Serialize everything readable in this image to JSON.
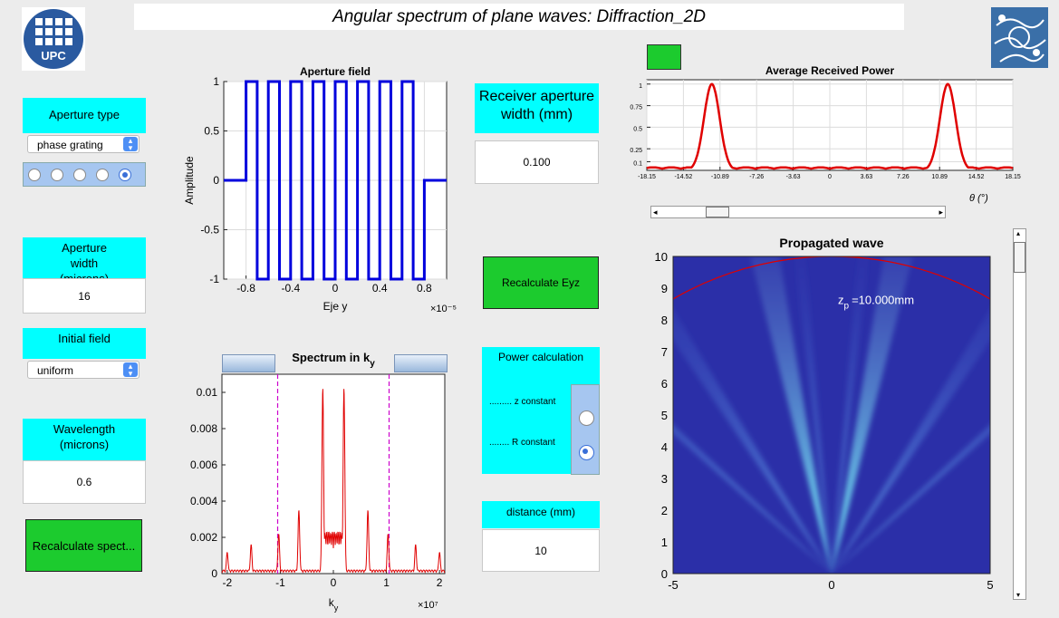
{
  "title": "Angular spectrum of plane waves: Diffraction_2D",
  "logo_left": "UPC",
  "aperture_type": {
    "label": "Aperture type",
    "value": "phase grating"
  },
  "aperture_width": {
    "label": "Aperture width (microns)",
    "value": "16"
  },
  "initial_field": {
    "label": "Initial field",
    "value": "uniform"
  },
  "wavelength": {
    "label": "Wavelength (microns)",
    "value": "0.6"
  },
  "recalc_spectrum": "Recalculate spect...",
  "receiver": {
    "label": "Receiver aperture width (mm)",
    "value": "0.100"
  },
  "recalc_eyz": "Recalculate Eyz",
  "power_calc": {
    "label": "Power calculation",
    "z_const": "......... z constant",
    "r_const": "........ R constant",
    "selected": "R constant"
  },
  "distance": {
    "label": "distance (mm)",
    "value": "10"
  },
  "status_color": "#1ccb2e",
  "chart_data": [
    {
      "type": "line",
      "title": "Aperture field",
      "xlabel": "Eje y",
      "ylabel": "Amplitude",
      "x_multiplier": "×10⁻⁵",
      "xlim": [
        -1,
        1
      ],
      "ylim": [
        -1,
        1
      ],
      "xticks": [
        -0.8,
        -0.4,
        0,
        0.4,
        0.8
      ],
      "yticks": [
        -1,
        -0.5,
        0,
        0.5,
        1
      ],
      "series": [
        {
          "color": "#0000dd",
          "x": [
            -1,
            -0.8,
            -0.8,
            -0.7,
            -0.7,
            -0.6,
            -0.6,
            -0.5,
            -0.5,
            -0.4,
            -0.4,
            -0.3,
            -0.3,
            -0.2,
            -0.2,
            -0.1,
            -0.1,
            0,
            0,
            0.1,
            0.1,
            0.2,
            0.2,
            0.3,
            0.3,
            0.4,
            0.4,
            0.5,
            0.5,
            0.6,
            0.6,
            0.7,
            0.7,
            0.8,
            0.8,
            1
          ],
          "y": [
            0,
            0,
            1,
            1,
            -1,
            -1,
            1,
            1,
            -1,
            -1,
            1,
            1,
            -1,
            -1,
            1,
            1,
            -1,
            -1,
            1,
            1,
            -1,
            -1,
            1,
            1,
            -1,
            -1,
            1,
            1,
            -1,
            -1,
            1,
            1,
            -1,
            -1,
            0,
            0
          ]
        }
      ]
    },
    {
      "type": "line",
      "title": "Spectrum in k",
      "title_sub": "y",
      "xlabel": "k",
      "xlabel_sub": "y",
      "x_multiplier": "×10⁷",
      "xlim": [
        -2.1,
        2.1
      ],
      "ylim": [
        0,
        0.011
      ],
      "xticks": [
        -2,
        -1,
        0,
        1,
        2
      ],
      "yticks": [
        0,
        0.002,
        0.004,
        0.006,
        0.008,
        0.01
      ],
      "ytick_labels": [
        "0",
        "0.002",
        "0.004",
        "0.006",
        "0.008",
        "0.01"
      ],
      "vlines": [
        -1.05,
        1.05
      ],
      "vline_color": "#cc00cc",
      "series": [
        {
          "color": "#e00000",
          "peaks": [
            [
              -2.0,
              0.0011
            ],
            [
              -1.55,
              0.0015
            ],
            [
              -1.03,
              0.0021
            ],
            [
              -0.65,
              0.0034
            ],
            [
              -0.2,
              0.0102
            ],
            [
              0.2,
              0.0102
            ],
            [
              0.65,
              0.0034
            ],
            [
              1.03,
              0.0021
            ],
            [
              1.55,
              0.0015
            ],
            [
              2.0,
              0.0011
            ]
          ]
        }
      ]
    },
    {
      "type": "line",
      "title": "Average Received Power",
      "xlabel": "θ (°)",
      "xlim": [
        -18.15,
        18.15
      ],
      "ylim": [
        0,
        1.05
      ],
      "xticks": [
        -18.15,
        -14.52,
        -10.89,
        -7.26,
        -3.63,
        0,
        3.63,
        7.26,
        10.89,
        14.52,
        18.15
      ],
      "xtick_labels": [
        "-18.15",
        "-14.52",
        "-10.89",
        "-7.26",
        "-3.63",
        "0",
        "3.63",
        "7.26",
        "10.89",
        "14.52",
        "18.15"
      ],
      "yticks": [
        0.1,
        0.25,
        0.5,
        0.75,
        1
      ],
      "series": [
        {
          "color": "#e00000",
          "peaks": [
            [
              -11.7,
              1
            ],
            [
              11.7,
              1
            ]
          ]
        }
      ]
    },
    {
      "type": "heatmap",
      "title": "Propagated wave",
      "xlim": [
        -5,
        5
      ],
      "ylim": [
        0,
        10
      ],
      "xticks": [
        -5,
        0,
        5
      ],
      "yticks": [
        0,
        1,
        2,
        3,
        4,
        5,
        6,
        7,
        8,
        9,
        10
      ],
      "annotation": "z",
      "annotation_sub": "p",
      "annotation_value": "=10.000mm",
      "arc_color": "#e00000"
    }
  ]
}
